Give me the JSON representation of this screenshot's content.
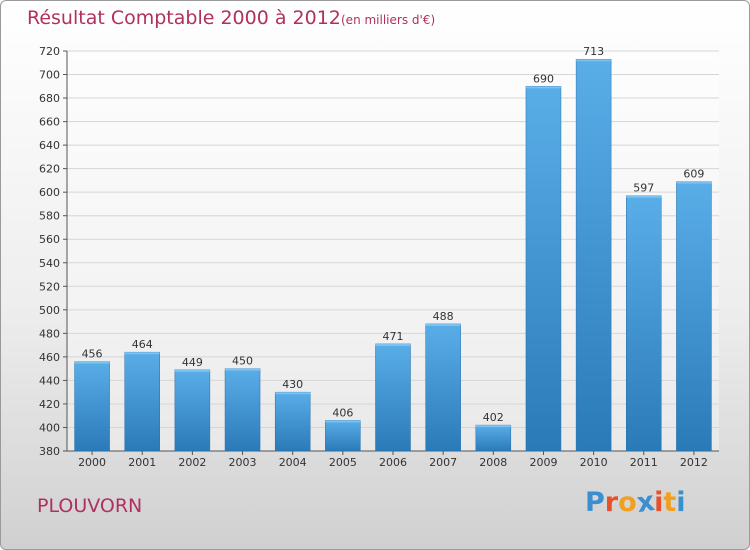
{
  "header": {
    "title": "Résultat Comptable 2000 à 2012",
    "subtitle": "(en milliers d'€)"
  },
  "footer": {
    "commune": "PLOUVORN",
    "logo": [
      "P",
      "r",
      "o",
      "x",
      "i",
      "t",
      "i"
    ]
  },
  "colors": {
    "title": "#b03060",
    "bar_light": "#5aaee8",
    "bar_dark": "#2a7ab8",
    "logo": [
      "#3a8fd0",
      "#e8502a",
      "#f0a020",
      "#3a8fd0",
      "#e8502a",
      "#f0a020",
      "#3a8fd0"
    ]
  },
  "chart_data": {
    "type": "bar",
    "title": "Résultat Comptable 2000 à 2012",
    "subtitle": "(en milliers d'€)",
    "xlabel": "",
    "ylabel": "",
    "categories": [
      "2000",
      "2001",
      "2002",
      "2003",
      "2004",
      "2005",
      "2006",
      "2007",
      "2008",
      "2009",
      "2010",
      "2011",
      "2012"
    ],
    "values": [
      456,
      464,
      449,
      450,
      430,
      406,
      471,
      488,
      402,
      690,
      713,
      597,
      609
    ],
    "ylim": [
      380,
      720
    ],
    "yticks": [
      380,
      400,
      420,
      440,
      460,
      480,
      500,
      520,
      540,
      560,
      580,
      600,
      620,
      640,
      660,
      680,
      700,
      720
    ],
    "grid": true
  }
}
